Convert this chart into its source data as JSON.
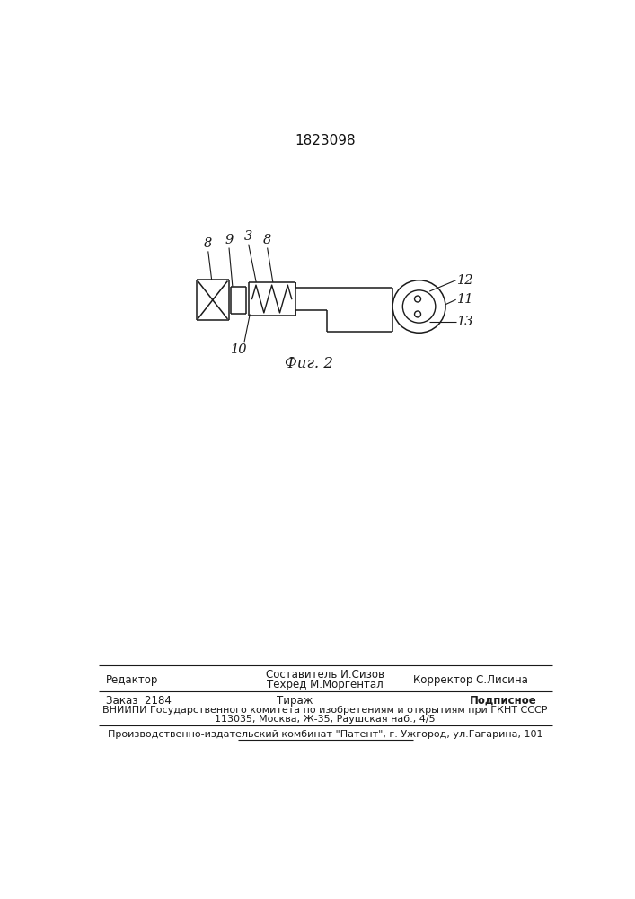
{
  "patent_number": "1823098",
  "fig_label": "Фиг. 2",
  "bg_color": "#ffffff",
  "line_color": "#1a1a1a",
  "label_8L": "8",
  "label_9": "9",
  "label_3": "3",
  "label_8R": "8",
  "label_10": "10",
  "label_12": "12",
  "label_11": "11",
  "label_13": "13",
  "footer_left1": "Редактор",
  "footer_center1a": "Составитель И.Сизов",
  "footer_center1b": "Техред М.Моргентал",
  "footer_right1": "Корректор С.Лисина",
  "footer_left2": "Заказ  2184",
  "footer_center2": "Тираж",
  "footer_right2": "Подписное",
  "footer_line3": "ВНИИПИ Государственного комитета по изобретениям и открытиям при ГКНТ СССР",
  "footer_line4": "113035, Москва, Ж-35, Раушская наб., 4/5",
  "footer_line5": "Производственно-издательский комбинат \"Патент\", г. Ужгород, ул.Гагарина, 101"
}
